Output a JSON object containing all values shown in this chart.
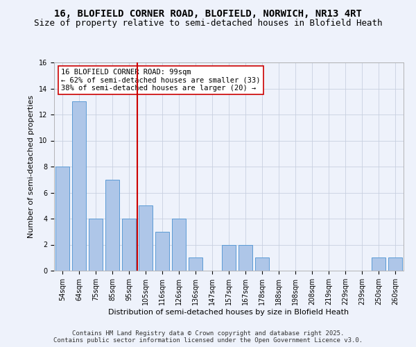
{
  "title_line1": "16, BLOFIELD CORNER ROAD, BLOFIELD, NORWICH, NR13 4RT",
  "title_line2": "Size of property relative to semi-detached houses in Blofield Heath",
  "xlabel": "Distribution of semi-detached houses by size in Blofield Heath",
  "ylabel": "Number of semi-detached properties",
  "footer_line1": "Contains HM Land Registry data © Crown copyright and database right 2025.",
  "footer_line2": "Contains public sector information licensed under the Open Government Licence v3.0.",
  "categories": [
    "54sqm",
    "64sqm",
    "75sqm",
    "85sqm",
    "95sqm",
    "105sqm",
    "116sqm",
    "126sqm",
    "136sqm",
    "147sqm",
    "157sqm",
    "167sqm",
    "178sqm",
    "188sqm",
    "198sqm",
    "208sqm",
    "219sqm",
    "229sqm",
    "239sqm",
    "250sqm",
    "260sqm"
  ],
  "values": [
    8,
    13,
    4,
    7,
    4,
    5,
    3,
    4,
    1,
    0,
    2,
    2,
    1,
    0,
    0,
    0,
    0,
    0,
    0,
    1,
    1
  ],
  "bar_color": "#aec6e8",
  "bar_edge_color": "#5b9bd5",
  "highlight_index": 4,
  "highlight_color": "#cc0000",
  "annotation_text": "16 BLOFIELD CORNER ROAD: 99sqm\n← 62% of semi-detached houses are smaller (33)\n38% of semi-detached houses are larger (20) →",
  "annotation_box_color": "#ffffff",
  "annotation_box_edge_color": "#cc0000",
  "ylim": [
    0,
    16
  ],
  "yticks": [
    0,
    2,
    4,
    6,
    8,
    10,
    12,
    14,
    16
  ],
  "background_color": "#eef2fb",
  "plot_bg_color": "#eef2fb",
  "grid_color": "#c8d0e0",
  "title_fontsize": 10,
  "subtitle_fontsize": 9,
  "axis_label_fontsize": 8,
  "tick_fontsize": 7,
  "footer_fontsize": 6.5,
  "annotation_fontsize": 7.5
}
